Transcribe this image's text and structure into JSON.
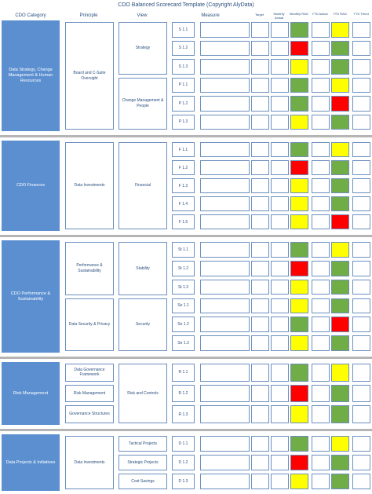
{
  "title": "CDO Balanced Scorecard Template (Copyright AlyData)",
  "headers": {
    "category": "CDO Category",
    "principle": "Principle",
    "view": "View",
    "measure": "Measure",
    "target": "Target",
    "monthly_actual": "Monthly Actual",
    "monthly_rag": "Monthly RAG",
    "ytd_actual": "YTD Actual",
    "ytd_rag": "YTD RAG",
    "ytd_trend": "YTD Trend"
  },
  "colors": {
    "green": "#70ad47",
    "red": "#ff0000",
    "yellow": "#ffff00",
    "category_blue": "#5b8fd0"
  },
  "sections": [
    {
      "category": "Data Strategy, Change Management & Human Resources",
      "principles": [
        "Board and C-Suite Oversight"
      ],
      "views": [
        "Strategy",
        "Change Management & People"
      ],
      "rows": [
        {
          "id": "S 1.1",
          "monthly_rag": "green",
          "ytd_rag": "yellow"
        },
        {
          "id": "S 1.2",
          "monthly_rag": "red",
          "ytd_rag": "green"
        },
        {
          "id": "S 1.3",
          "monthly_rag": "yellow",
          "ytd_rag": "green"
        },
        {
          "id": "P 1.1",
          "monthly_rag": "green",
          "ytd_rag": "yellow"
        },
        {
          "id": "P 1.2",
          "monthly_rag": "green",
          "ytd_rag": "red"
        },
        {
          "id": "P 1.3",
          "monthly_rag": "yellow",
          "ytd_rag": "green"
        }
      ]
    },
    {
      "category": "CDO Finances",
      "principles": [
        "Data Investments"
      ],
      "views": [
        "Financial"
      ],
      "rows": [
        {
          "id": "F 1.1",
          "monthly_rag": "green",
          "ytd_rag": "yellow"
        },
        {
          "id": "F 1.2",
          "monthly_rag": "red",
          "ytd_rag": "green"
        },
        {
          "id": "F 1.3",
          "monthly_rag": "yellow",
          "ytd_rag": "green"
        },
        {
          "id": "F 1.4",
          "monthly_rag": "yellow",
          "ytd_rag": "green"
        },
        {
          "id": "F 1.5",
          "monthly_rag": "yellow",
          "ytd_rag": "red"
        }
      ]
    },
    {
      "category": "CDO Performance & Sustainability",
      "principles": [
        "Performance & Sustainability",
        "Data Security & Privacy"
      ],
      "views": [
        "Stability",
        "Security"
      ],
      "rows": [
        {
          "id": "St 1.1",
          "monthly_rag": "green",
          "ytd_rag": "yellow"
        },
        {
          "id": "St 1.2",
          "monthly_rag": "red",
          "ytd_rag": "green"
        },
        {
          "id": "St 1.3",
          "monthly_rag": "yellow",
          "ytd_rag": "green"
        },
        {
          "id": "Se 1.1",
          "monthly_rag": "yellow",
          "ytd_rag": "green"
        },
        {
          "id": "Se 1.2",
          "monthly_rag": "green",
          "ytd_rag": "red"
        },
        {
          "id": "Se 1.3",
          "monthly_rag": "yellow",
          "ytd_rag": "green"
        }
      ]
    },
    {
      "category": "Risk Management",
      "principles": [
        "Data Governance Framework",
        "Risk Management",
        "Governance Structures"
      ],
      "views": [
        "Risk and Controls"
      ],
      "rows": [
        {
          "id": "R 1.1",
          "monthly_rag": "green",
          "ytd_rag": "yellow"
        },
        {
          "id": "R 1.2",
          "monthly_rag": "red",
          "ytd_rag": "green"
        },
        {
          "id": "R 1.3",
          "monthly_rag": "yellow",
          "ytd_rag": "green"
        }
      ]
    },
    {
      "category": "Data Projects & Initiatives",
      "principles": [
        "Data Investments"
      ],
      "views": [
        "Tactical Projects",
        "Strategic Projects",
        "Cost Savings"
      ],
      "rows": [
        {
          "id": "D 1.1",
          "monthly_rag": "green",
          "ytd_rag": "yellow"
        },
        {
          "id": "D 1.2",
          "monthly_rag": "red",
          "ytd_rag": "green"
        },
        {
          "id": "D 1.3",
          "monthly_rag": "yellow",
          "ytd_rag": "green"
        }
      ]
    }
  ]
}
